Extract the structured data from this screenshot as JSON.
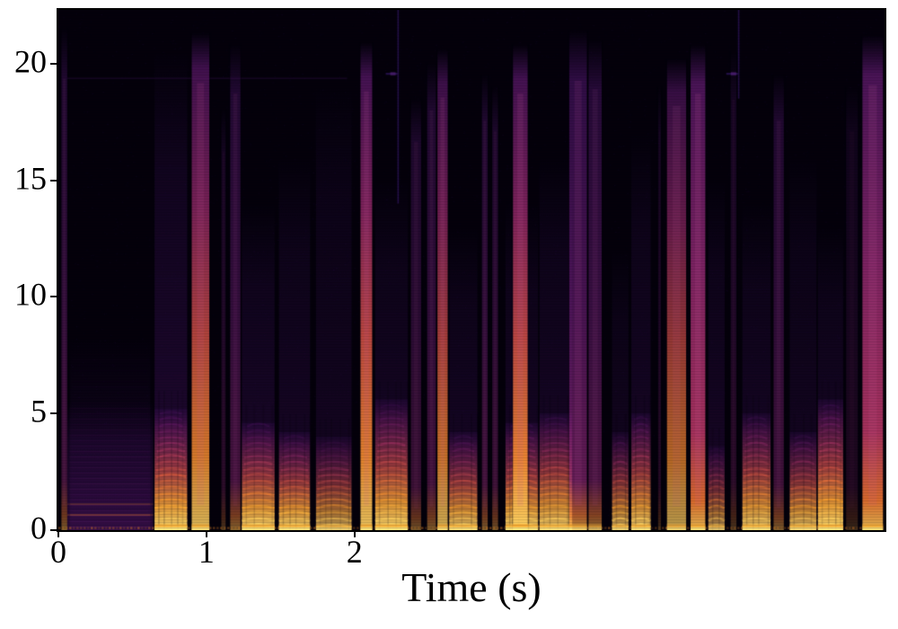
{
  "chart_data": {
    "type": "heatmap",
    "subtype": "speech-spectrogram",
    "title": "",
    "xlabel": "Time (s)",
    "ylabel": "",
    "xlim": [
      0,
      5.58
    ],
    "ylim": [
      0,
      22.3
    ],
    "x_ticks": [
      0,
      1,
      2
    ],
    "y_ticks": [
      0,
      5,
      10,
      15,
      20
    ],
    "grid": false,
    "legend": "none",
    "colormap": "magma",
    "palette": {
      "background": "#04010b",
      "purple_dark": "#2a0d57",
      "purple": "#51127c",
      "magenta": "#8c2981",
      "pink": "#b73779",
      "red": "#de4968",
      "orange": "#f8850f",
      "yellow": "#fcd34d",
      "spine": "#000000",
      "text": "#000000"
    },
    "events": [
      {
        "kind": "streak",
        "t0": 0.02,
        "t1": 0.06,
        "amp": 0.5,
        "f_top": 21.5,
        "tint": "purple"
      },
      {
        "kind": "wash",
        "t0": 0.06,
        "t1": 0.64,
        "amp": 0.5,
        "f_top": 5.5
      },
      {
        "kind": "wash",
        "t0": 0.08,
        "t1": 0.62,
        "amp": 0.18,
        "f_top": 8.2
      },
      {
        "kind": "hline",
        "t0": 0.06,
        "t1": 1.95,
        "f": 19.4,
        "amp": 0.18
      },
      {
        "kind": "voiced",
        "t0": 0.65,
        "t1": 0.87,
        "amp": 0.95,
        "f_voiced": 5.2,
        "f_top": 20.5,
        "col_amp": 0.4
      },
      {
        "kind": "streak",
        "t0": 0.9,
        "t1": 1.02,
        "amp": 0.85,
        "f_top": 21.3,
        "tint": "orange"
      },
      {
        "kind": "streak",
        "t0": 1.1,
        "t1": 1.13,
        "amp": 0.3,
        "f_top": 18,
        "tint": "purple"
      },
      {
        "kind": "streak",
        "t0": 1.16,
        "t1": 1.23,
        "amp": 0.55,
        "f_top": 20.8,
        "tint": "purple"
      },
      {
        "kind": "voiced",
        "t0": 1.24,
        "t1": 1.46,
        "amp": 0.9,
        "f_voiced": 4.6,
        "f_top": 14,
        "col_amp": 0.35
      },
      {
        "kind": "voiced",
        "t0": 1.49,
        "t1": 1.7,
        "amp": 0.88,
        "f_voiced": 4.2,
        "f_top": 16,
        "col_amp": 0.3
      },
      {
        "kind": "voiced",
        "t0": 1.74,
        "t1": 1.98,
        "amp": 0.68,
        "f_voiced": 4.0,
        "f_top": 19,
        "col_amp": 0.25
      },
      {
        "kind": "streak",
        "t0": 2.04,
        "t1": 2.12,
        "amp": 0.9,
        "f_top": 20.9,
        "tint": "orange"
      },
      {
        "kind": "voiced",
        "t0": 2.14,
        "t1": 2.36,
        "amp": 0.92,
        "f_voiced": 5.6,
        "f_top": 15,
        "col_amp": 0.3
      },
      {
        "kind": "topline",
        "t0": 2.29,
        "f_bot": 14.0,
        "amp": 0.55
      },
      {
        "kind": "streak",
        "t0": 2.38,
        "t1": 2.45,
        "amp": 0.45,
        "f_top": 18.5,
        "tint": "purple"
      },
      {
        "kind": "streak",
        "t0": 2.49,
        "t1": 2.55,
        "amp": 0.5,
        "f_top": 20,
        "tint": "purple"
      },
      {
        "kind": "streak",
        "t0": 2.56,
        "t1": 2.63,
        "amp": 0.8,
        "f_top": 20.6,
        "tint": "orange"
      },
      {
        "kind": "voiced",
        "t0": 2.64,
        "t1": 2.83,
        "amp": 0.82,
        "f_voiced": 4.2,
        "f_top": 13,
        "col_amp": 0.3
      },
      {
        "kind": "streak",
        "t0": 2.86,
        "t1": 2.9,
        "amp": 0.5,
        "f_top": 19.5,
        "tint": "purple"
      },
      {
        "kind": "streak",
        "t0": 2.93,
        "t1": 2.97,
        "amp": 0.45,
        "f_top": 19,
        "tint": "purple"
      },
      {
        "kind": "voiced",
        "t0": 3.02,
        "t1": 3.24,
        "amp": 0.88,
        "f_voiced": 4.6,
        "f_top": 14,
        "col_amp": 0.3
      },
      {
        "kind": "streak",
        "t0": 3.07,
        "t1": 3.17,
        "amp": 0.9,
        "f_top": 20.8,
        "tint": "orange"
      },
      {
        "kind": "voiced",
        "t0": 3.25,
        "t1": 3.47,
        "amp": 0.85,
        "f_voiced": 5.0,
        "f_top": 16,
        "col_amp": 0.3
      },
      {
        "kind": "streak",
        "t0": 3.45,
        "t1": 3.57,
        "amp": 0.78,
        "f_top": 21.4,
        "tint": "purple"
      },
      {
        "kind": "streak",
        "t0": 3.58,
        "t1": 3.67,
        "amp": 0.6,
        "f_top": 21.0,
        "tint": "purple"
      },
      {
        "kind": "voiced",
        "t0": 3.74,
        "t1": 3.85,
        "amp": 0.72,
        "f_voiced": 4.2,
        "f_top": 12,
        "col_amp": 0.25
      },
      {
        "kind": "voiced",
        "t0": 3.87,
        "t1": 4.0,
        "amp": 0.85,
        "f_voiced": 5.0,
        "f_top": 17,
        "col_amp": 0.3
      },
      {
        "kind": "streak",
        "t0": 4.05,
        "t1": 4.07,
        "amp": 0.25,
        "f_top": 19,
        "tint": "purple"
      },
      {
        "kind": "streak",
        "t0": 4.11,
        "t1": 4.24,
        "amp": 0.72,
        "f_top": 20.2,
        "tint": "orange"
      },
      {
        "kind": "streak",
        "t0": 4.27,
        "t1": 4.37,
        "amp": 0.88,
        "f_top": 20.8,
        "tint": "pink"
      },
      {
        "kind": "voiced",
        "t0": 4.39,
        "t1": 4.5,
        "amp": 0.6,
        "f_voiced": 3.6,
        "f_top": 15,
        "col_amp": 0.3
      },
      {
        "kind": "streak",
        "t0": 4.54,
        "t1": 4.58,
        "amp": 0.3,
        "f_top": 20.5,
        "tint": "purple"
      },
      {
        "kind": "topline",
        "t0": 4.59,
        "f_bot": 18.5,
        "amp": 0.55
      },
      {
        "kind": "voiced",
        "t0": 4.62,
        "t1": 4.81,
        "amp": 0.85,
        "f_voiced": 5.0,
        "f_top": 14,
        "col_amp": 0.3
      },
      {
        "kind": "streak",
        "t0": 4.83,
        "t1": 4.9,
        "amp": 0.5,
        "f_top": 19.5,
        "tint": "purple"
      },
      {
        "kind": "voiced",
        "t0": 4.94,
        "t1": 5.12,
        "amp": 0.78,
        "f_voiced": 4.2,
        "f_top": 16,
        "col_amp": 0.25
      },
      {
        "kind": "voiced",
        "t0": 5.13,
        "t1": 5.3,
        "amp": 0.95,
        "f_voiced": 5.6,
        "f_top": 13,
        "col_amp": 0.3
      },
      {
        "kind": "streak",
        "t0": 5.32,
        "t1": 5.4,
        "amp": 0.22,
        "f_top": 19,
        "tint": "purple"
      },
      {
        "kind": "streak",
        "t0": 5.43,
        "t1": 5.57,
        "amp": 0.88,
        "f_top": 21.2,
        "tint": "pink"
      }
    ]
  }
}
